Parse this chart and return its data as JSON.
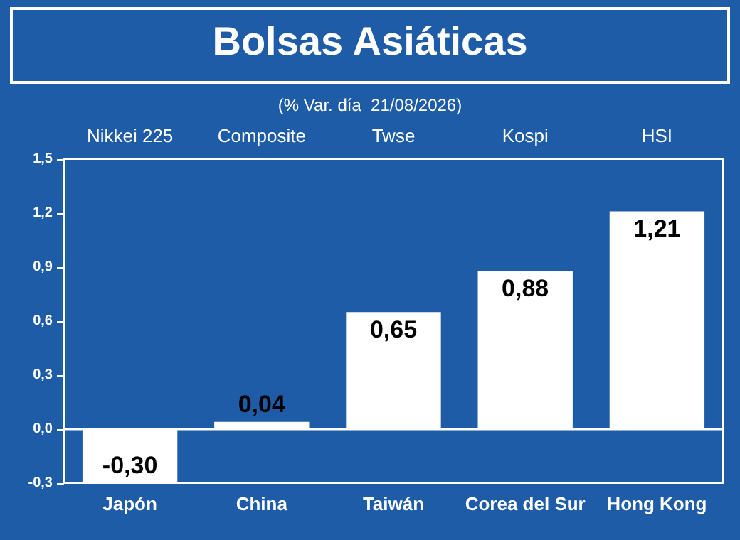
{
  "chart_data": {
    "type": "bar",
    "title": "Bolsas Asiáticas",
    "subtitle": "(% Var. día  21/08/2026)",
    "categories": [
      "Japón",
      "China",
      "Taiwán",
      "Corea del Sur",
      "Hong Kong"
    ],
    "values": [
      -0.3,
      0.04,
      0.65,
      0.88,
      1.21
    ],
    "value_labels": [
      "-0,30",
      "0,04",
      "0,65",
      "0,88",
      "1,21"
    ],
    "color": "#ffffff",
    "annotations": [
      "Nikkei 225",
      "Composite",
      "Twse",
      "Kospi",
      "HSI"
    ],
    "ref_lines": [
      {
        "axis": "y",
        "value": 0
      }
    ],
    "ylim": [
      -0.3,
      1.5
    ],
    "yticks": [
      {
        "value": -0.3,
        "label": "-0,3"
      },
      {
        "value": 0,
        "label": "0,0"
      },
      {
        "value": 0.3,
        "label": "0,3"
      },
      {
        "value": 0.6,
        "label": "0,6"
      },
      {
        "value": 0.9,
        "label": "0,9"
      },
      {
        "value": 1.2,
        "label": "1,2"
      },
      {
        "value": 1.5,
        "label": "1,5"
      }
    ],
    "grid": false
  }
}
